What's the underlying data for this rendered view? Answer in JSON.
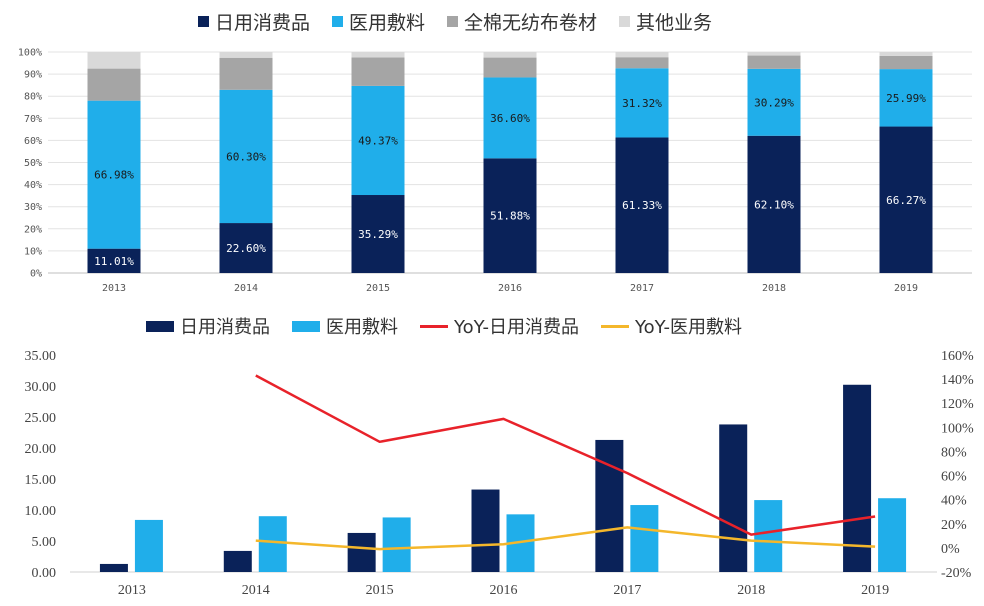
{
  "chart_data": [
    {
      "type": "bar",
      "stacked": true,
      "title": "",
      "categories": [
        "2013",
        "2014",
        "2015",
        "2016",
        "2017",
        "2018",
        "2019"
      ],
      "ylim": [
        0,
        100
      ],
      "yticks": [
        "0%",
        "10%",
        "20%",
        "30%",
        "40%",
        "50%",
        "60%",
        "70%",
        "80%",
        "90%",
        "100%"
      ],
      "legend_position": "top-center",
      "series": [
        {
          "name": "日用消费品",
          "color": "#0a2259",
          "values": [
            11.01,
            22.6,
            35.29,
            51.88,
            61.33,
            62.1,
            66.27
          ],
          "labels": [
            "11.01%",
            "22.60%",
            "35.29%",
            "51.88%",
            "61.33%",
            "62.10%",
            "66.27%"
          ]
        },
        {
          "name": "医用敷料",
          "color": "#20aeea",
          "values": [
            66.98,
            60.3,
            49.37,
            36.6,
            31.32,
            30.29,
            25.99
          ],
          "labels": [
            "66.98%",
            "60.30%",
            "49.37%",
            "36.60%",
            "31.32%",
            "30.29%",
            "25.99%"
          ]
        },
        {
          "name": "全棉无纺布卷材",
          "color": "#a5a5a5",
          "values": [
            14.5,
            14.5,
            12.9,
            9.0,
            5.0,
            6.0,
            6.0
          ]
        },
        {
          "name": "其他业务",
          "color": "#d9d9d9",
          "values": [
            7.51,
            2.6,
            2.44,
            2.52,
            2.35,
            1.61,
            1.74
          ]
        }
      ]
    },
    {
      "type": "bar+line",
      "categories": [
        "2013",
        "2014",
        "2015",
        "2016",
        "2017",
        "2018",
        "2019"
      ],
      "ylim": [
        0,
        35
      ],
      "yticks": [
        "0.00",
        "5.00",
        "10.00",
        "15.00",
        "20.00",
        "25.00",
        "30.00",
        "35.00"
      ],
      "y2lim": [
        -20,
        160
      ],
      "y2ticks": [
        "-20%",
        "0%",
        "20%",
        "40%",
        "60%",
        "80%",
        "100%",
        "120%",
        "140%",
        "160%"
      ],
      "legend_position": "top-center",
      "series": [
        {
          "name": "日用消费品",
          "kind": "bar",
          "color": "#0a2259",
          "values": [
            1.3,
            3.4,
            6.3,
            13.3,
            21.3,
            23.8,
            30.2
          ]
        },
        {
          "name": "医用敷料",
          "kind": "bar",
          "color": "#20aeea",
          "values": [
            8.4,
            9.0,
            8.8,
            9.3,
            10.8,
            11.6,
            11.9
          ]
        },
        {
          "name": "YoY-日用消费品",
          "kind": "line",
          "axis": "right",
          "color": "#e8222a",
          "values": [
            null,
            143,
            88,
            107,
            62,
            11,
            26
          ]
        },
        {
          "name": "YoY-医用敷料",
          "kind": "line",
          "axis": "right",
          "color": "#f4b72b",
          "values": [
            null,
            6,
            -1,
            3,
            17,
            6,
            1
          ]
        }
      ]
    }
  ]
}
